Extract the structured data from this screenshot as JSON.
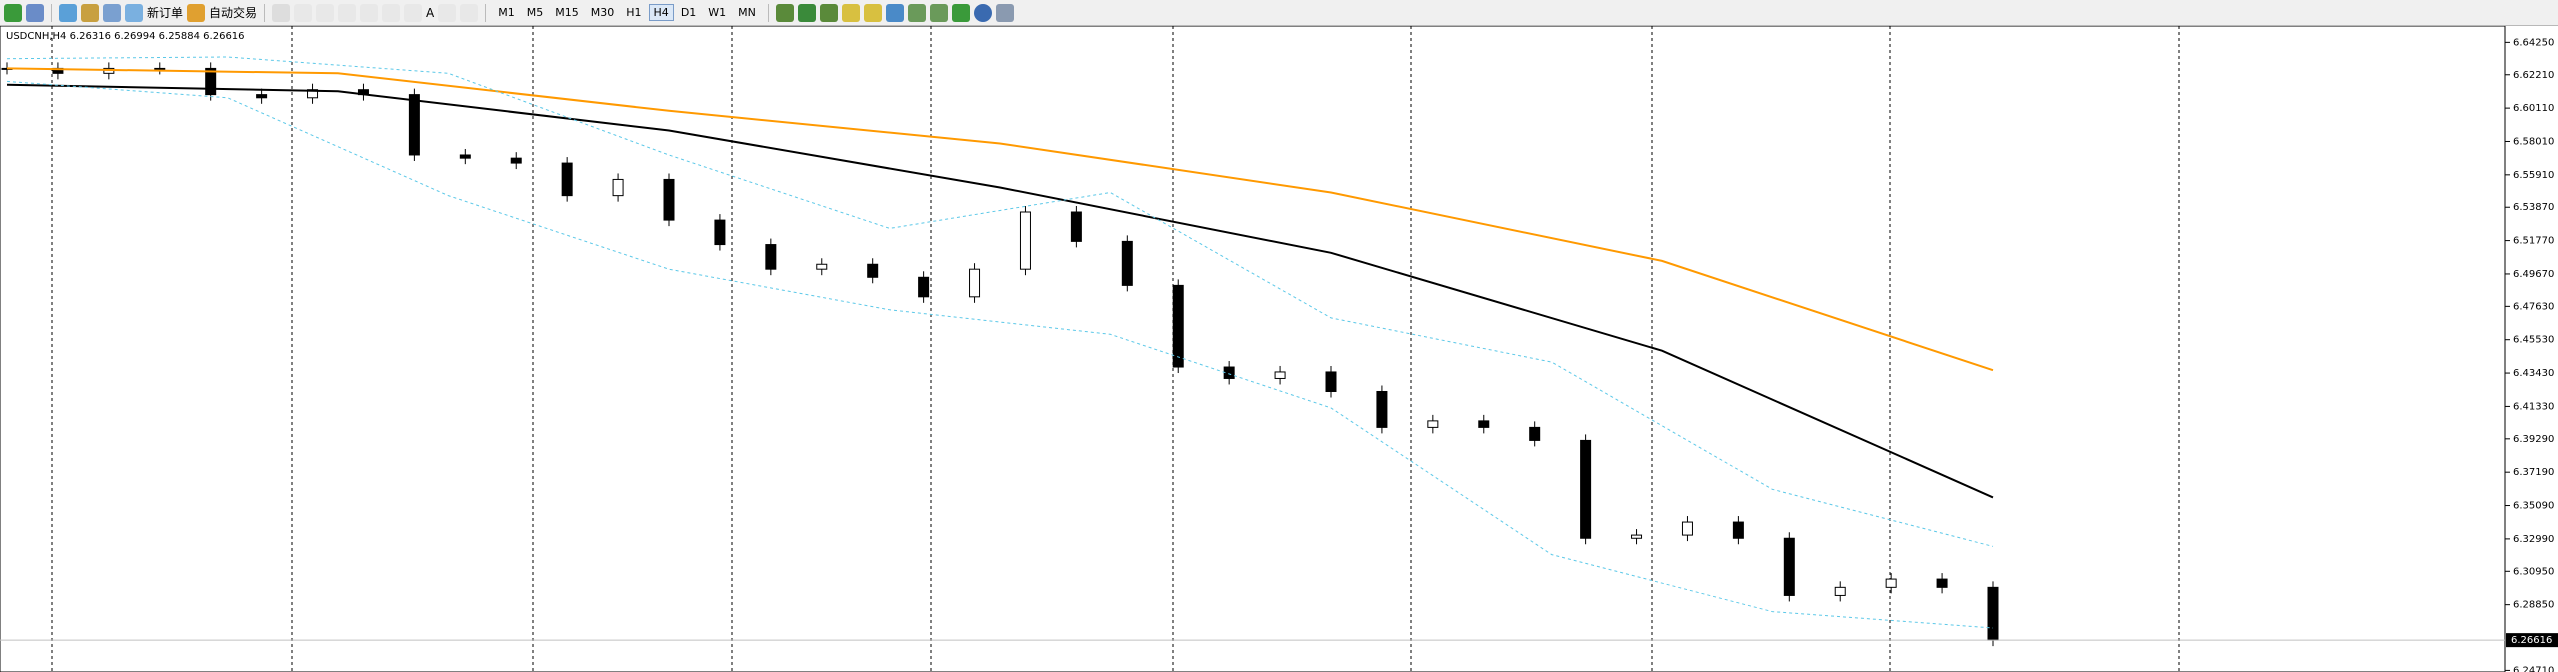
{
  "toolbar": {
    "new_order": "新订单",
    "auto_trading": "自动交易",
    "text_tool": "A",
    "timeframes": [
      "M1",
      "M5",
      "M15",
      "M30",
      "H1",
      "H4",
      "D1",
      "W1",
      "MN"
    ],
    "active_timeframe": 5
  },
  "chart_data": {
    "type": "candlestick",
    "header": "USDCNH,H4  6.26316 6.26994 6.25884 6.26616",
    "closes": [
      6.6261,
      6.623,
      6.6261,
      6.6261,
      6.6096,
      6.6076,
      6.6127,
      6.6096,
      6.5716,
      6.5696,
      6.5665,
      6.546,
      6.5562,
      6.5306,
      6.5152,
      6.4997,
      6.5028,
      6.4946,
      6.4823,
      6.4997,
      6.5357,
      6.5172,
      6.4895,
      6.4381,
      6.4309,
      6.435,
      6.4227,
      6.4001,
      6.4042,
      6.4001,
      6.3919,
      6.3303,
      6.3323,
      6.3405,
      6.3303,
      6.2943,
      6.2994,
      6.3046,
      6.2994,
      6.2662
    ],
    "series": [
      {
        "color": "#ff9900",
        "style": "solid",
        "values": [
          6.6261,
          6.623,
          6.5994,
          6.5788,
          6.548,
          6.5049,
          6.4361
        ]
      },
      {
        "color": "#000000",
        "style": "solid",
        "values": [
          6.6158,
          6.6117,
          6.587,
          6.5511,
          6.51,
          6.4484,
          6.356
        ]
      },
      {
        "color": "#5bc8e8",
        "style": "dashed",
        "values": [
          6.6322,
          6.6333,
          6.623,
          6.5716,
          6.5254,
          6.548,
          6.469,
          6.4412,
          6.3611,
          6.3252
        ]
      },
      {
        "color": "#5bc8e8",
        "style": "dashed",
        "values": [
          6.6179,
          6.6076,
          6.546,
          6.4997,
          6.4741,
          6.4587,
          6.4124,
          6.32,
          6.2841,
          6.2738
        ]
      }
    ],
    "ylim": [
      6.2461,
      6.6528
    ],
    "yticks": [
      {
        "value": 6.6425,
        "label": "6.64250"
      },
      {
        "value": 6.6221,
        "label": "6.62210"
      },
      {
        "value": 6.6011,
        "label": "6.60110"
      },
      {
        "value": 6.5801,
        "label": "6.58010"
      },
      {
        "value": 6.5591,
        "label": "6.55910"
      },
      {
        "value": 6.5387,
        "label": "6.53870"
      },
      {
        "value": 6.5177,
        "label": "6.51770"
      },
      {
        "value": 6.4967,
        "label": "6.49670"
      },
      {
        "value": 6.4763,
        "label": "6.47630"
      },
      {
        "value": 6.4553,
        "label": "6.45530"
      },
      {
        "value": 6.4343,
        "label": "6.43430"
      },
      {
        "value": 6.4133,
        "label": "6.41330"
      },
      {
        "value": 6.3929,
        "label": "6.39290"
      },
      {
        "value": 6.3719,
        "label": "6.37190"
      },
      {
        "value": 6.3509,
        "label": "6.35090"
      },
      {
        "value": 6.3299,
        "label": "6.32990"
      },
      {
        "value": 6.3095,
        "label": "6.30950"
      },
      {
        "value": 6.2885,
        "label": "6.28850"
      },
      {
        "value": 6.2471,
        "label": "6.24710"
      }
    ],
    "current_price": {
      "value": 6.26616,
      "label": "6.26616"
    }
  }
}
